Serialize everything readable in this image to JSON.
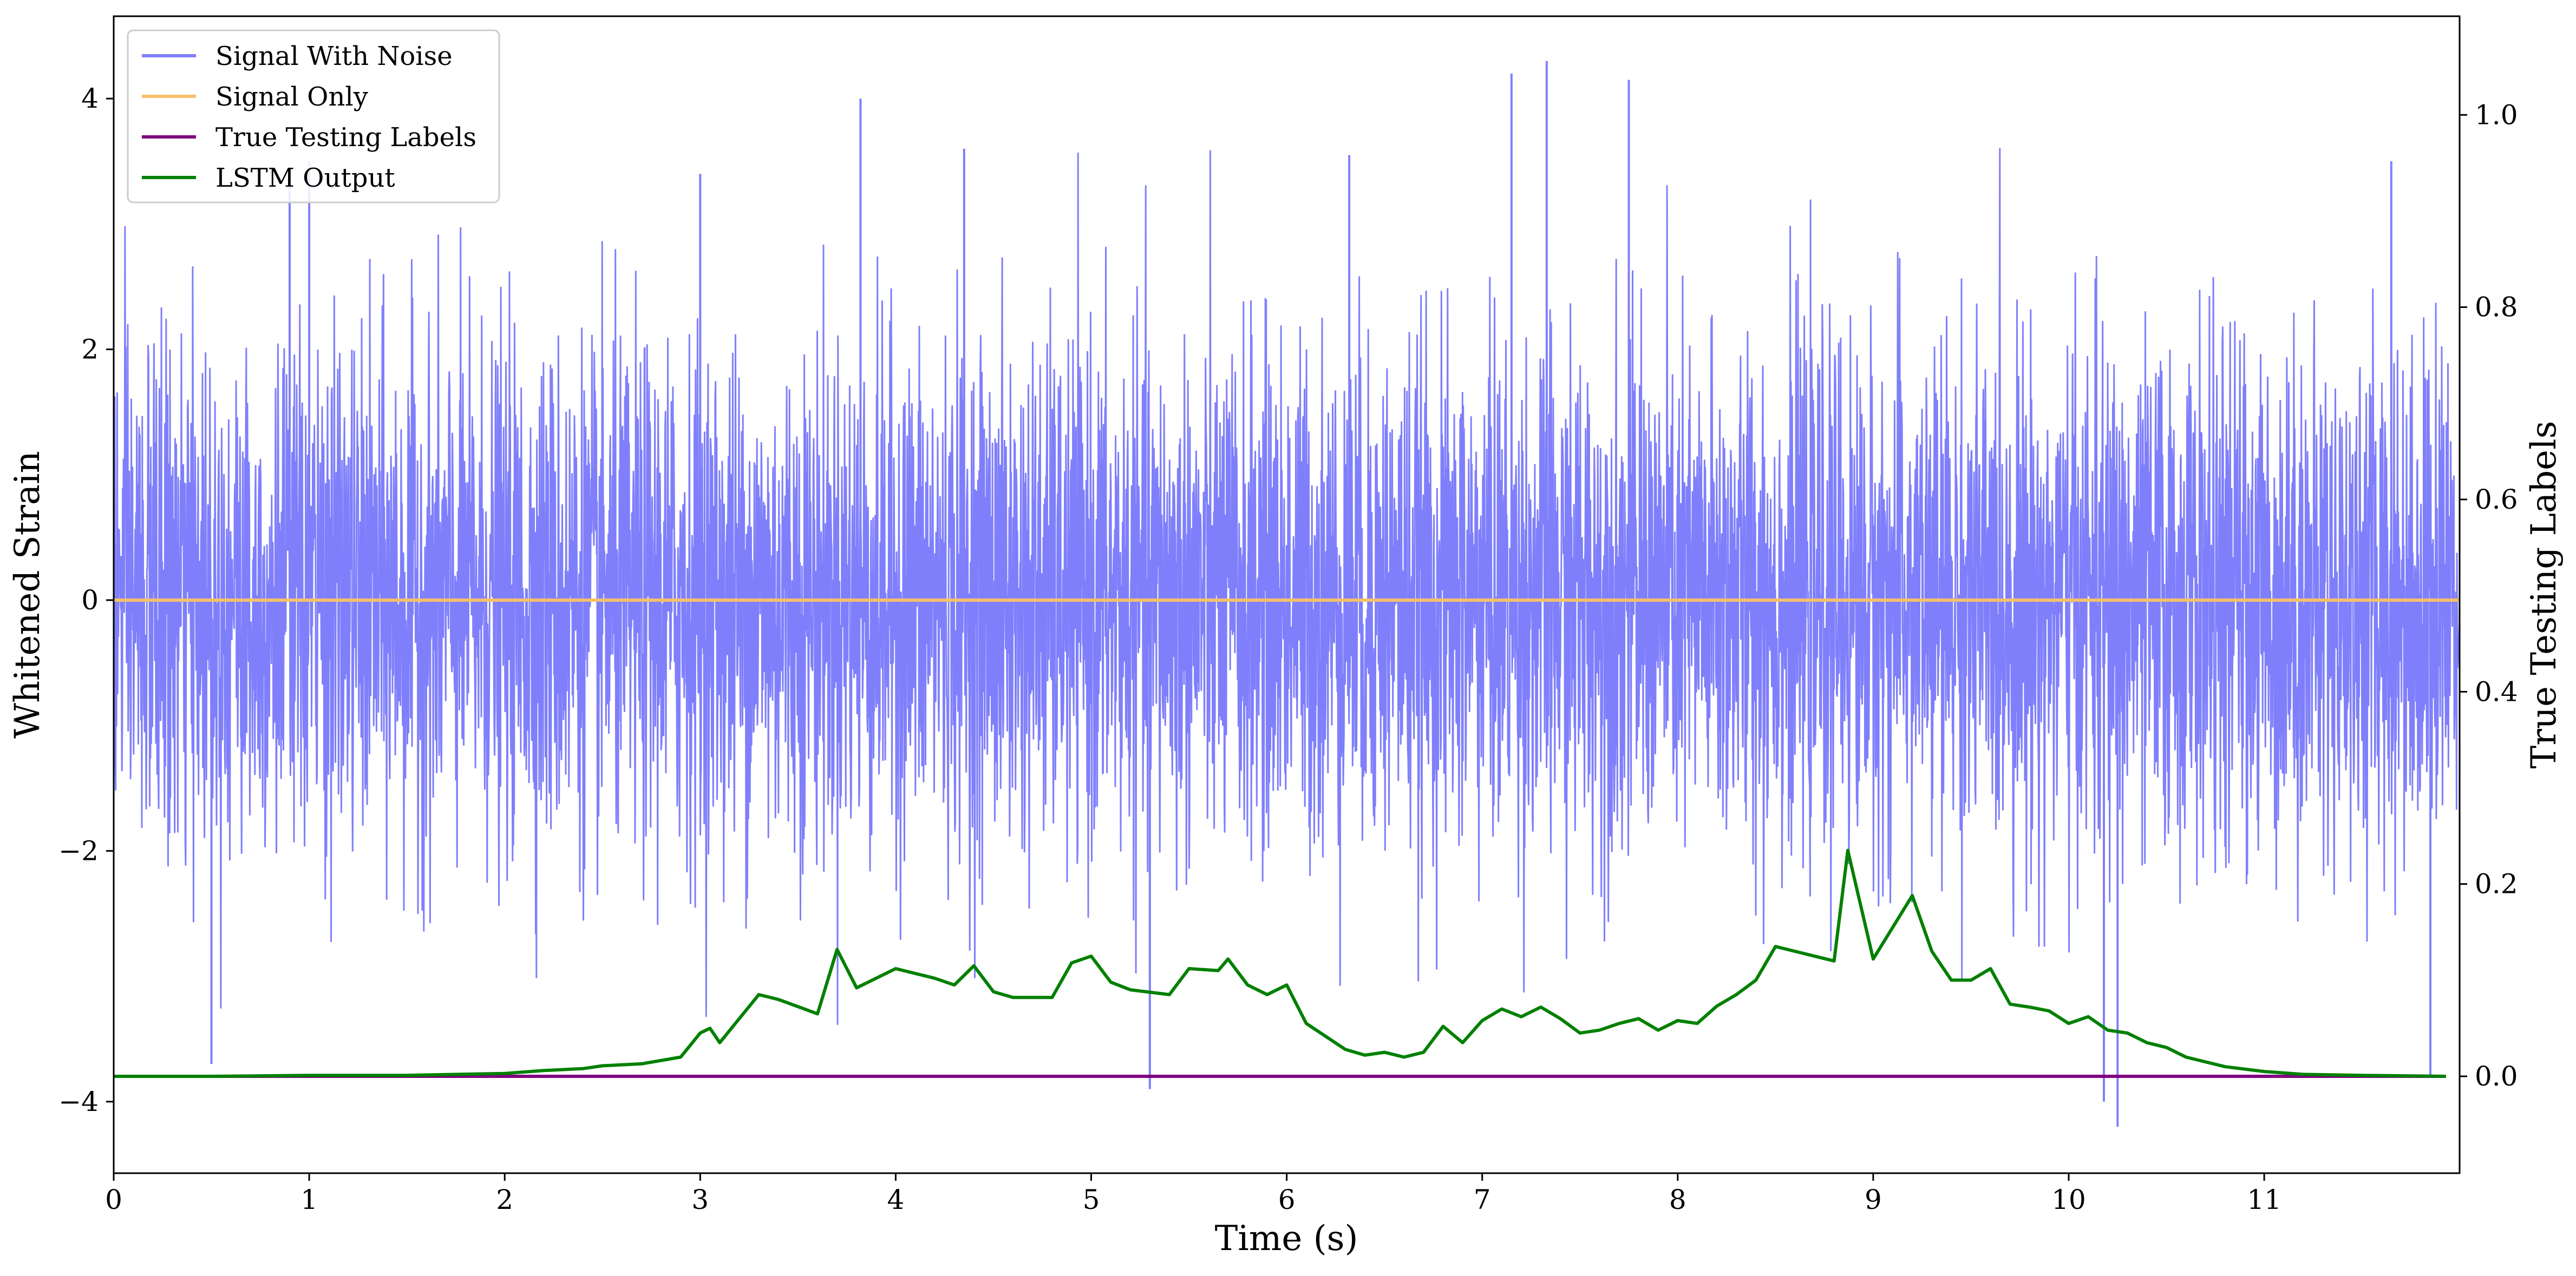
{
  "chart_data": {
    "type": "line",
    "title": "",
    "xlabel": "Time (s)",
    "ylabel": "Whitened Strain",
    "ylabel_right": "True Testing Labels",
    "xlim": [
      0,
      12
    ],
    "ylim": [
      -4.6,
      4.6
    ],
    "ylim_right": [
      -0.1,
      1.1
    ],
    "x_ticks": [
      "0",
      "1",
      "2",
      "3",
      "4",
      "5",
      "6",
      "7",
      "8",
      "9",
      "10",
      "11"
    ],
    "y_ticks": [
      "−4",
      "−2",
      "0",
      "2",
      "4"
    ],
    "y_right_ticks": [
      "0.0",
      "0.2",
      "0.4",
      "0.6",
      "0.8",
      "1.0"
    ],
    "grid": false,
    "legend_position": "top-left",
    "series": [
      {
        "name": "Signal With Noise",
        "axis": "left",
        "color": "#7f7ffc",
        "note_visual": "dense Gaussian-like noise, approx std 1, occasional spikes to about ±4",
        "noise_scale": 1.0,
        "spikes": [
          {
            "x": 0.5,
            "y": -3.7
          },
          {
            "x": 0.9,
            "y": 3.4
          },
          {
            "x": 1.0,
            "y": 3.5
          },
          {
            "x": 3.0,
            "y": 3.4
          },
          {
            "x": 3.82,
            "y": 4.0
          },
          {
            "x": 5.3,
            "y": -3.9
          },
          {
            "x": 7.15,
            "y": 4.2
          },
          {
            "x": 7.33,
            "y": 4.3
          },
          {
            "x": 7.75,
            "y": 4.15
          },
          {
            "x": 10.18,
            "y": -4.0
          },
          {
            "x": 10.25,
            "y": -4.2
          },
          {
            "x": 11.85,
            "y": -3.8
          },
          {
            "x": 11.65,
            "y": 3.5
          },
          {
            "x": 4.35,
            "y": 3.6
          },
          {
            "x": 6.32,
            "y": 3.55
          }
        ]
      },
      {
        "name": "Signal Only",
        "axis": "left",
        "color": "#f4c06a",
        "x": [
          0,
          12
        ],
        "values": [
          0,
          0
        ]
      },
      {
        "name": "True Testing Labels",
        "axis": "right",
        "color": "#800080",
        "x": [
          0,
          11.93
        ],
        "values": [
          0.0,
          0.0
        ]
      },
      {
        "name": "LSTM Output",
        "axis": "right",
        "color": "#008000",
        "x": [
          0,
          0.5,
          1.0,
          1.5,
          2.0,
          2.2,
          2.4,
          2.5,
          2.7,
          2.9,
          3.0,
          3.05,
          3.1,
          3.3,
          3.4,
          3.6,
          3.7,
          3.8,
          4.0,
          4.2,
          4.3,
          4.4,
          4.5,
          4.6,
          4.8,
          4.9,
          5.0,
          5.1,
          5.2,
          5.4,
          5.5,
          5.65,
          5.7,
          5.8,
          5.9,
          6.0,
          6.1,
          6.3,
          6.4,
          6.5,
          6.6,
          6.7,
          6.8,
          6.9,
          7.0,
          7.1,
          7.2,
          7.3,
          7.4,
          7.5,
          7.6,
          7.7,
          7.8,
          7.9,
          8.0,
          8.1,
          8.2,
          8.3,
          8.4,
          8.5,
          8.6,
          8.7,
          8.8,
          8.87,
          9.0,
          9.1,
          9.2,
          9.3,
          9.4,
          9.5,
          9.6,
          9.7,
          9.8,
          9.9,
          10.0,
          10.1,
          10.2,
          10.3,
          10.4,
          10.5,
          10.6,
          10.8,
          11.0,
          11.2,
          11.5,
          11.93
        ],
        "values": [
          0.0,
          0.0,
          0.001,
          0.001,
          0.003,
          0.006,
          0.008,
          0.011,
          0.013,
          0.02,
          0.045,
          0.05,
          0.035,
          0.085,
          0.08,
          0.065,
          0.132,
          0.092,
          0.112,
          0.102,
          0.095,
          0.115,
          0.088,
          0.082,
          0.082,
          0.118,
          0.125,
          0.098,
          0.09,
          0.085,
          0.112,
          0.11,
          0.122,
          0.095,
          0.085,
          0.095,
          0.055,
          0.028,
          0.022,
          0.025,
          0.02,
          0.025,
          0.052,
          0.035,
          0.058,
          0.07,
          0.062,
          0.072,
          0.06,
          0.045,
          0.048,
          0.055,
          0.06,
          0.048,
          0.058,
          0.055,
          0.073,
          0.085,
          0.1,
          0.135,
          0.13,
          0.125,
          0.12,
          0.235,
          0.122,
          0.155,
          0.188,
          0.13,
          0.1,
          0.1,
          0.112,
          0.075,
          0.072,
          0.068,
          0.055,
          0.062,
          0.048,
          0.045,
          0.035,
          0.03,
          0.02,
          0.01,
          0.005,
          0.002,
          0.001,
          0.0
        ]
      }
    ]
  }
}
